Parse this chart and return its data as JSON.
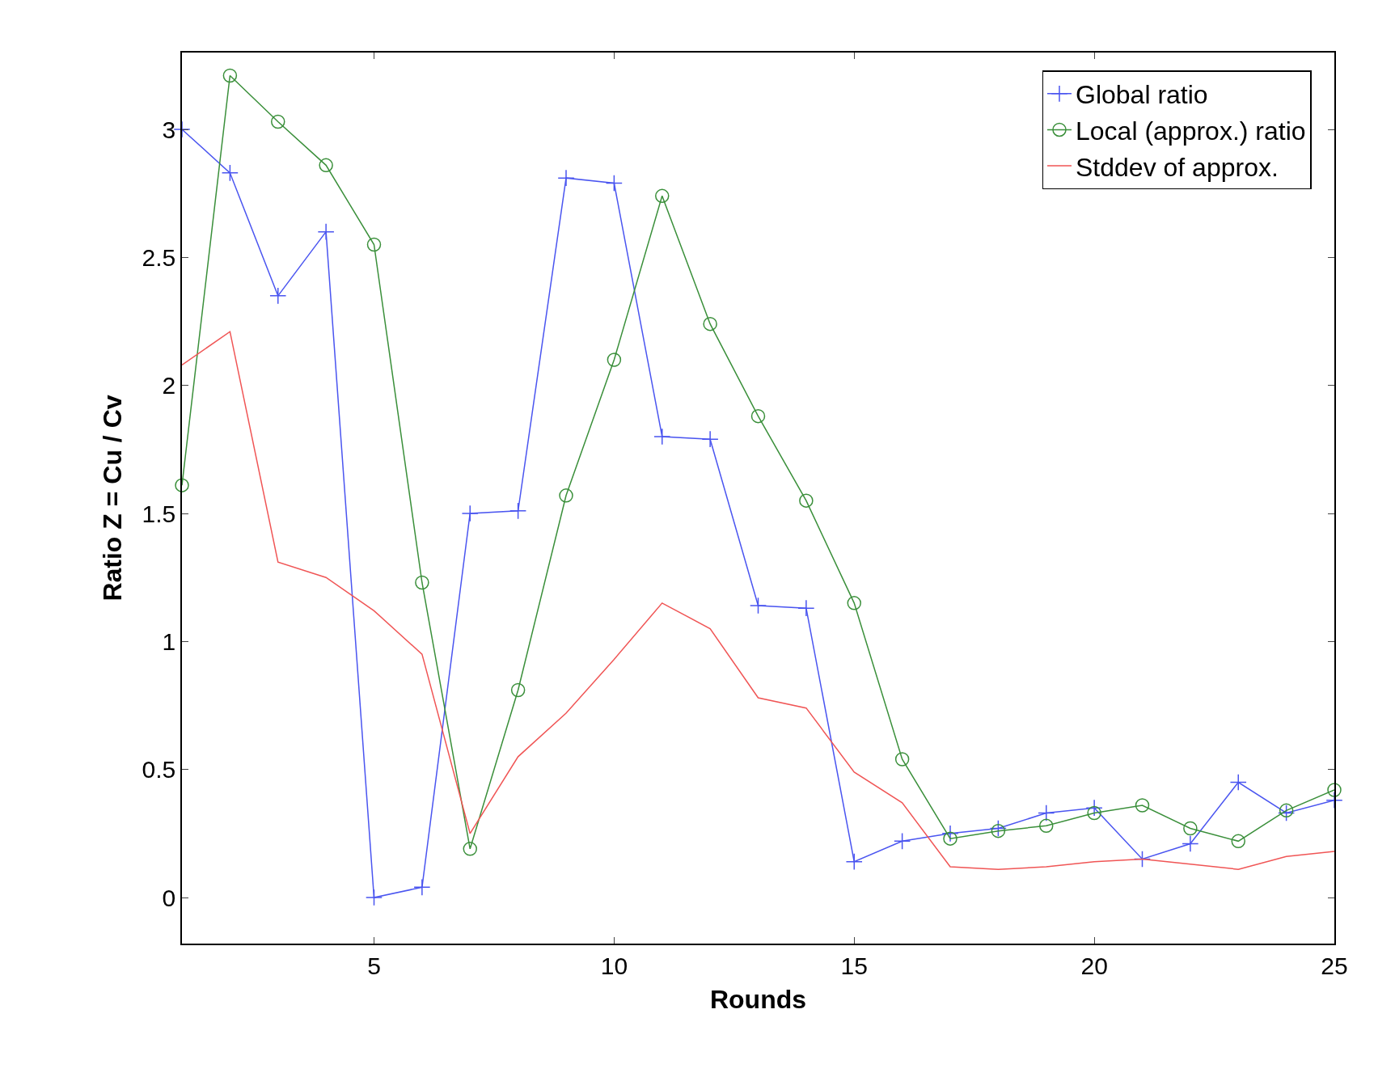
{
  "chart_data": {
    "type": "line",
    "xlabel": "Rounds",
    "ylabel": "Ratio Z = Cu / Cv",
    "x": [
      1,
      2,
      3,
      4,
      5,
      6,
      7,
      8,
      9,
      10,
      11,
      12,
      13,
      14,
      15,
      16,
      17,
      18,
      19,
      20,
      21,
      22,
      23,
      24,
      25
    ],
    "series": [
      {
        "name": "Global ratio",
        "color": "#4a55f0",
        "marker": "cross",
        "values": [
          3.0,
          2.83,
          2.35,
          2.6,
          0.0,
          0.04,
          1.5,
          1.51,
          2.81,
          2.79,
          1.8,
          1.79,
          1.14,
          1.13,
          0.14,
          0.22,
          0.25,
          0.27,
          0.33,
          0.35,
          0.15,
          0.21,
          0.45,
          0.33,
          0.38
        ]
      },
      {
        "name": "Local (approx.) ratio",
        "color": "#3a8f3a",
        "marker": "circle",
        "values": [
          1.61,
          3.21,
          3.03,
          2.86,
          2.55,
          1.23,
          0.19,
          0.81,
          1.57,
          2.1,
          2.74,
          2.24,
          1.88,
          1.55,
          1.15,
          0.54,
          0.23,
          0.26,
          0.28,
          0.33,
          0.36,
          0.27,
          0.22,
          0.34,
          0.42
        ]
      },
      {
        "name": "Stddev of approx.",
        "color": "#f05555",
        "marker": "none",
        "values": [
          2.08,
          2.21,
          1.31,
          1.25,
          1.12,
          0.95,
          0.25,
          0.55,
          0.72,
          0.93,
          1.15,
          1.05,
          0.78,
          0.74,
          0.49,
          0.37,
          0.12,
          0.11,
          0.12,
          0.14,
          0.15,
          0.13,
          0.11,
          0.16,
          0.18
        ]
      }
    ],
    "xlim": [
      1,
      25
    ],
    "xticks": [
      5,
      10,
      15,
      20,
      25
    ],
    "ylim": [
      -0.18,
      3.3
    ],
    "yticks": [
      0,
      0.5,
      1,
      1.5,
      2,
      2.5,
      3
    ],
    "legend": "top right",
    "line_style": "solid"
  }
}
